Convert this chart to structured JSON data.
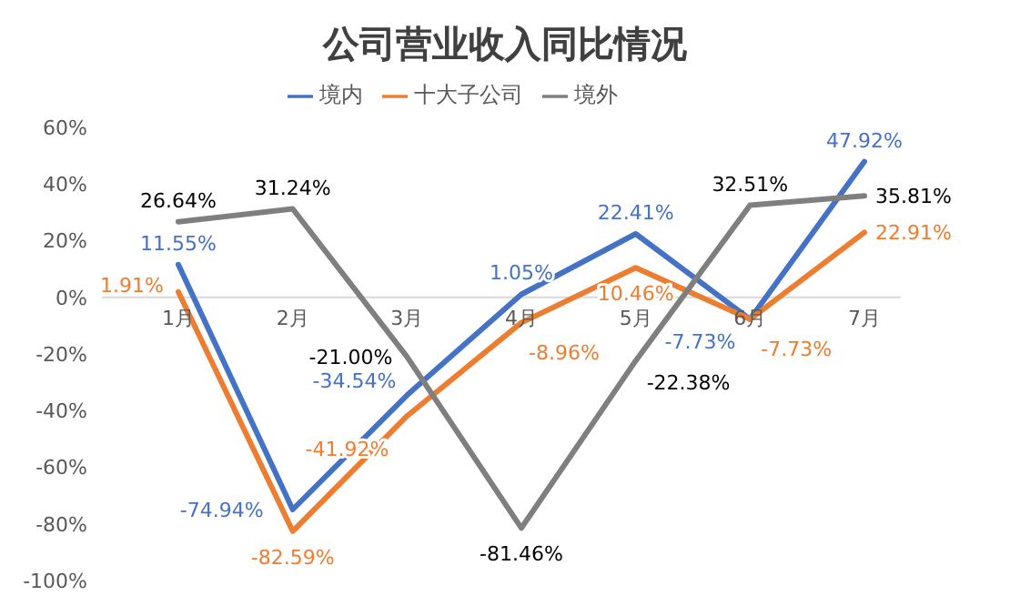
{
  "chart_data": {
    "type": "line",
    "title": "公司营业收入同比情况",
    "categories": [
      "1月",
      "2月",
      "3月",
      "4月",
      "5月",
      "6月",
      "7月"
    ],
    "series": [
      {
        "name": "境内",
        "color": "#4472c4",
        "values": [
          11.55,
          -74.94,
          -34.54,
          1.05,
          22.41,
          -7.73,
          47.92
        ],
        "value_labels": [
          "11.55%",
          "-74.94%",
          "-34.54%",
          "1.05%",
          "22.41%",
          "-7.73%",
          "47.92%"
        ]
      },
      {
        "name": "十大子公司",
        "color": "#ed7d31",
        "values": [
          1.91,
          -82.59,
          -41.92,
          -8.96,
          10.46,
          -7.73,
          22.91
        ],
        "value_labels": [
          "1.91%",
          "-82.59%",
          "-41.92%",
          "-8.96%",
          "10.46%",
          "-7.73%",
          "22.91%"
        ]
      },
      {
        "name": "境外",
        "color": "#7f7f7f",
        "values": [
          26.64,
          31.24,
          -21.0,
          -81.46,
          -22.38,
          32.51,
          35.81
        ],
        "value_labels": [
          "26.64%",
          "31.24%",
          "-21.00%",
          "-81.46%",
          "-22.38%",
          "32.51%",
          "35.81%"
        ]
      }
    ],
    "ylim": [
      -100,
      60
    ],
    "yticks": [
      {
        "value": -100,
        "label": "-100%"
      },
      {
        "value": -80,
        "label": "-80%"
      },
      {
        "value": -60,
        "label": "-60%"
      },
      {
        "value": -40,
        "label": "-40%"
      },
      {
        "value": -20,
        "label": "-20%"
      },
      {
        "value": 0,
        "label": "0%"
      },
      {
        "value": 20,
        "label": "20%"
      },
      {
        "value": 40,
        "label": "40%"
      },
      {
        "value": 60,
        "label": "60%"
      }
    ],
    "grid": false,
    "legend": "top",
    "marker": "none",
    "line_style": "solid"
  }
}
